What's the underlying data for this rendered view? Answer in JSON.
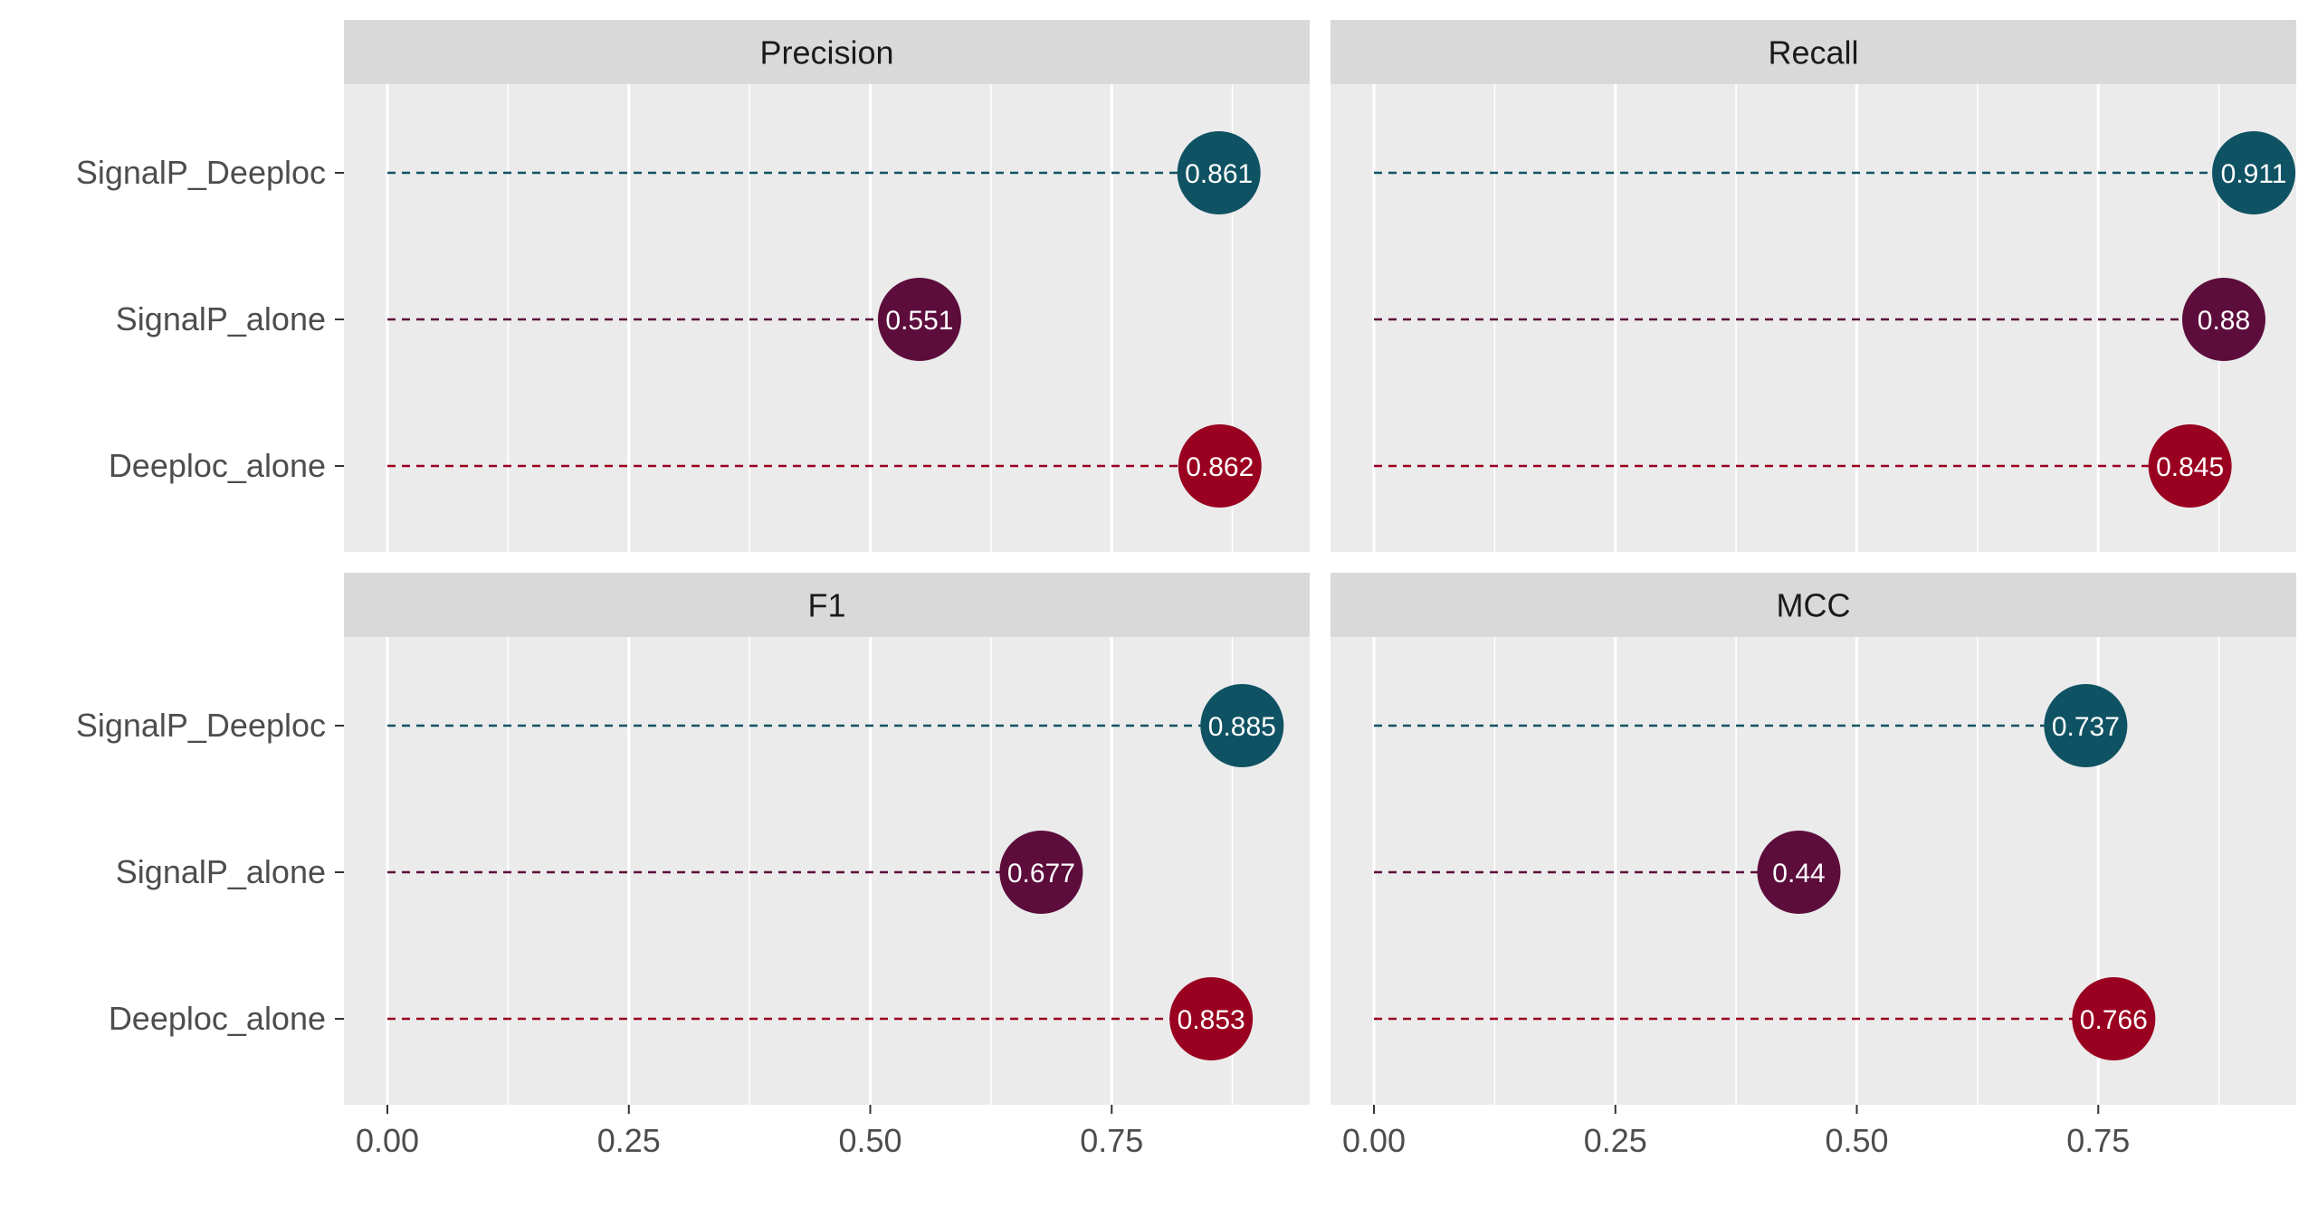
{
  "chart_data": {
    "type": "scatter",
    "subtype": "faceted dot plot with dashed leader lines",
    "facets": [
      "Precision",
      "Recall",
      "F1",
      "MCC"
    ],
    "categories": [
      "SignalP_Deeploc",
      "SignalP_alone",
      "Deeploc_alone"
    ],
    "xlim": [
      -0.045,
      0.955
    ],
    "x_ticks": [
      0,
      0.25,
      0.5,
      0.75
    ],
    "x_tick_labels": [
      "0.00",
      "0.25",
      "0.50",
      "0.75"
    ],
    "series": [
      {
        "facet": "Precision",
        "values": [
          0.861,
          0.551,
          0.862
        ],
        "labels": [
          "0.861",
          "0.551",
          "0.862"
        ]
      },
      {
        "facet": "Recall",
        "values": [
          0.911,
          0.88,
          0.845
        ],
        "labels": [
          "0.911",
          "0.88",
          "0.845"
        ]
      },
      {
        "facet": "F1",
        "values": [
          0.885,
          0.677,
          0.853
        ],
        "labels": [
          "0.885",
          "0.677",
          "0.853"
        ]
      },
      {
        "facet": "MCC",
        "values": [
          0.737,
          0.44,
          0.766
        ],
        "labels": [
          "0.737",
          "0.44",
          "0.766"
        ]
      }
    ],
    "colors": {
      "SignalP_Deeploc": "#0f5263",
      "SignalP_alone": "#5c0d3c",
      "Deeploc_alone": "#9a0020"
    },
    "panel_background": "#ebebeb",
    "strip_background": "#d9d9d9",
    "grid": true,
    "legend": "none"
  }
}
